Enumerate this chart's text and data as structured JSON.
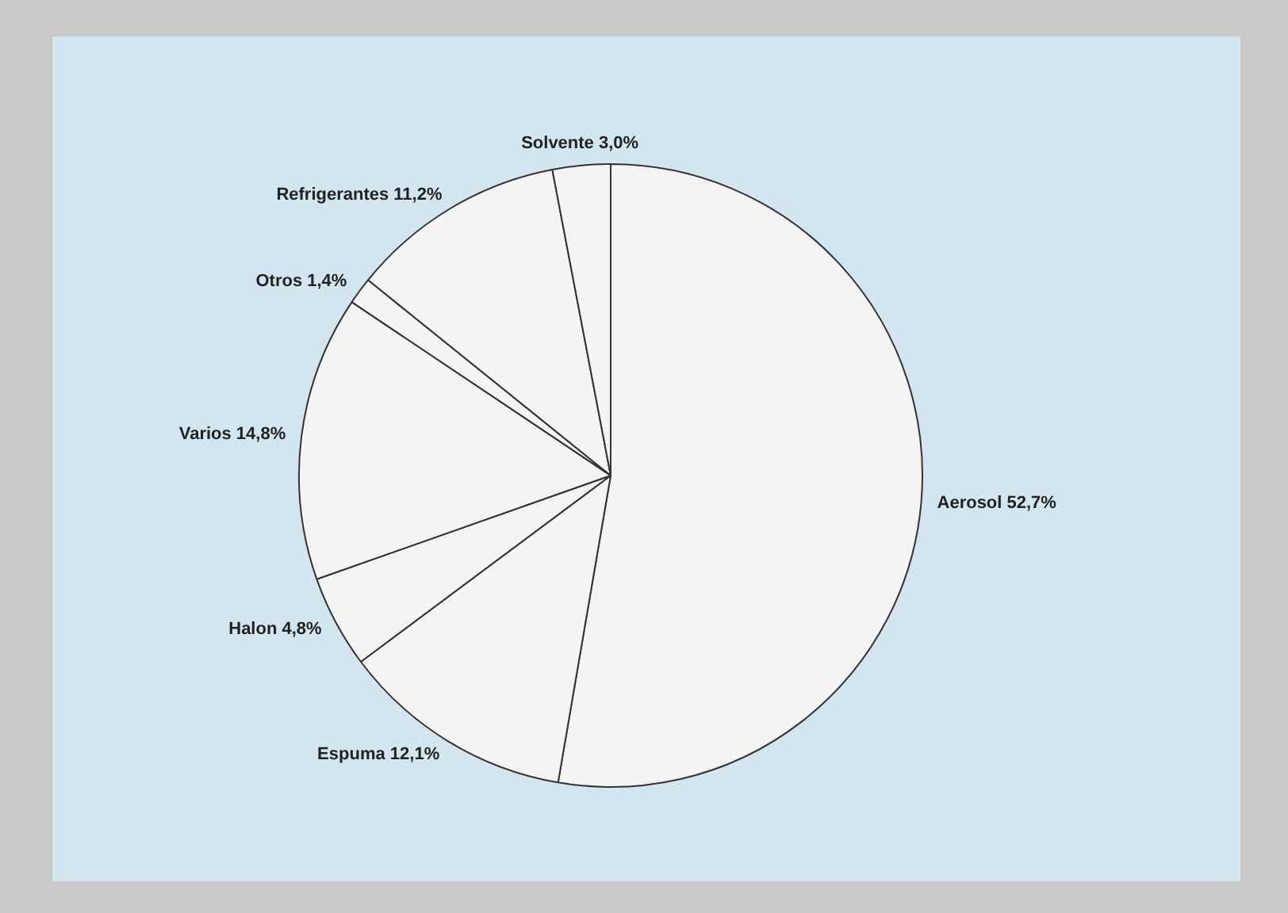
{
  "chart_data": {
    "type": "pie",
    "categories": [
      "Aerosol",
      "Espuma",
      "Halon",
      "Varios",
      "Otros",
      "Refrigerantes",
      "Solvente"
    ],
    "values": [
      52.7,
      12.1,
      4.8,
      14.8,
      1.4,
      11.2,
      3.0
    ],
    "value_labels": [
      "52,7%",
      "12,1%",
      "4,8%",
      "14,8%",
      "1,4%",
      "11,2%",
      "3,0%"
    ],
    "colors": [
      "#f4f4f4",
      "#f4f4f4",
      "#f4f4f4",
      "#f4f4f4",
      "#f4f4f4",
      "#f4f4f4",
      "#f4f4f4"
    ],
    "legend": false
  }
}
